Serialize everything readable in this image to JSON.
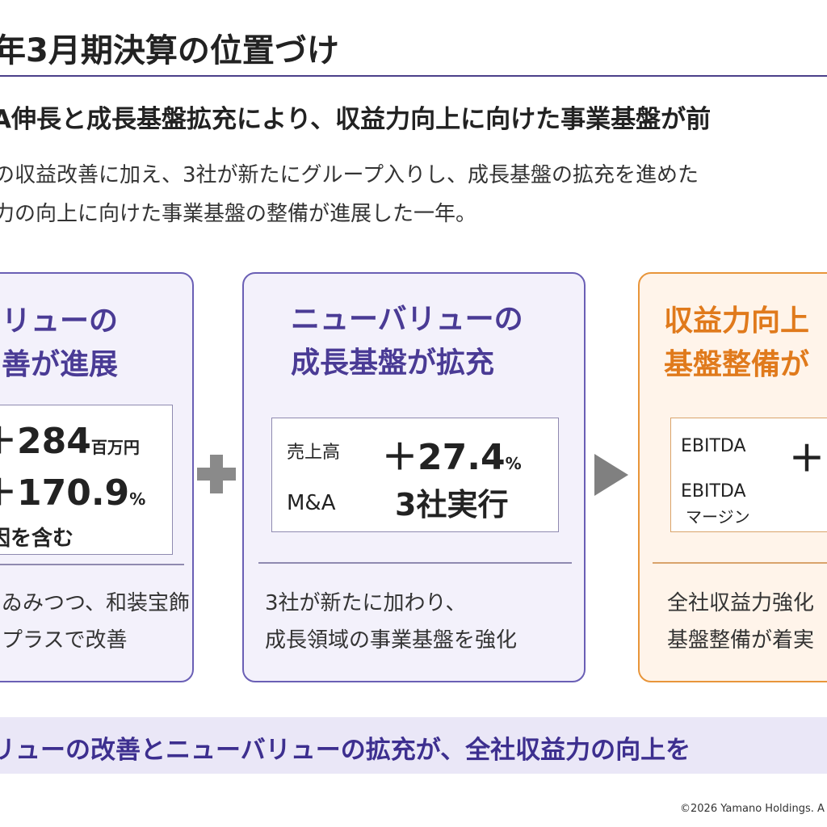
{
  "header": {
    "title": "年3月期決算の位置づけ"
  },
  "headline": "A伸長と成長基盤拡充により、収益力向上に向けた事業基盤が前",
  "description": {
    "line1": "の収益改善に加え、3社が新たにグループ入りし、成長基盤の拡充を進めた",
    "line2": "力の向上に向けた事業基盤の整備が進展した一年。"
  },
  "cards": {
    "left": {
      "title_line1": "リューの",
      "title_line2": "善が進展",
      "metric1_value": "＋284",
      "metric1_unit": "百万円",
      "metric2_value": "＋170.9",
      "metric2_unit": "%",
      "note": "因を含む",
      "footer_line1": "ゐみつつ、和装宝飾・",
      "footer_line2": "プラスで改善"
    },
    "middle": {
      "title_line1": "ニューバリューの",
      "title_line2": "成長基盤が拡充",
      "row1_label": "売上高",
      "row1_value": "＋27.4",
      "row1_unit": "%",
      "row2_label": "M&A",
      "row2_value": "3社実行",
      "footer_line1": "3社が新たに加わり、",
      "footer_line2": "成長領域の事業基盤を強化"
    },
    "right": {
      "title_line1": "収益力向上",
      "title_line2": "基盤整備が",
      "row1_label": "EBITDA",
      "row1_value": "＋(",
      "row2_label_line1": "EBITDA",
      "row2_label_line2": "マージン",
      "row2_value": "-",
      "footer_line1": "全社収益力強化",
      "footer_line2": "基盤整備が着実"
    }
  },
  "bottom_banner": "リューの改善とニューバリューの拡充が、全社収益力の向上を",
  "copyright": "©2026 Yamano Holdings. A",
  "colors": {
    "accent_purple": "#4a3b95",
    "accent_orange": "#e07a1c",
    "banner_bg": "#eae7f7"
  }
}
